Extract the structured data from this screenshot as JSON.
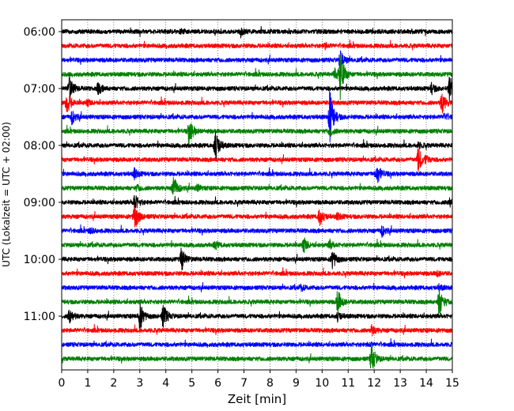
{
  "chart_data": {
    "type": "line",
    "subtype": "helicorder",
    "title": "",
    "xlabel": "Zeit  [min]",
    "ylabel": "UTC (Lokalzeit = UTC + 02:00)",
    "xlim": [
      0,
      15
    ],
    "x_ticks": [
      "0",
      "1",
      "2",
      "3",
      "4",
      "5",
      "6",
      "7",
      "8",
      "9",
      "10",
      "11",
      "12",
      "13",
      "14",
      "15"
    ],
    "y_ticks": [
      "06:00",
      "07:00",
      "08:00",
      "09:00",
      "10:00",
      "11:00"
    ],
    "grid": "vertical dotted lines at each minute",
    "trace_colors": [
      "#000000",
      "#ff0000",
      "#0000ff",
      "#008000"
    ],
    "traces": [
      {
        "start": "06:00",
        "events": [
          {
            "t": 6.9,
            "amp": 0.35
          },
          {
            "t": 4.6,
            "amp": 0.25
          }
        ]
      },
      {
        "start": "06:15",
        "events": [
          {
            "t": 10.1,
            "amp": 0.3
          }
        ]
      },
      {
        "start": "06:30",
        "events": [
          {
            "t": 10.7,
            "amp": 1.2
          }
        ]
      },
      {
        "start": "06:45",
        "events": [
          {
            "t": 10.7,
            "amp": 3.0
          },
          {
            "t": 10.5,
            "amp": 0.6
          }
        ]
      },
      {
        "start": "07:00",
        "events": [
          {
            "t": 0.3,
            "amp": 1.6
          },
          {
            "t": 1.4,
            "amp": 0.7
          },
          {
            "t": 14.9,
            "amp": 1.6
          },
          {
            "t": 14.2,
            "amp": 0.6
          }
        ]
      },
      {
        "start": "07:15",
        "events": [
          {
            "t": 0.2,
            "amp": 1.4
          },
          {
            "t": 14.6,
            "amp": 1.3
          },
          {
            "t": 1.0,
            "amp": 0.3
          }
        ]
      },
      {
        "start": "07:30",
        "events": [
          {
            "t": 0.4,
            "amp": 0.8
          },
          {
            "t": 10.3,
            "amp": 3.4
          },
          {
            "t": 14.7,
            "amp": 0.35
          }
        ]
      },
      {
        "start": "07:45",
        "events": [
          {
            "t": 4.9,
            "amp": 1.6
          },
          {
            "t": 10.3,
            "amp": 0.5
          }
        ]
      },
      {
        "start": "08:00",
        "events": [
          {
            "t": 5.9,
            "amp": 2.2
          },
          {
            "t": 13.7,
            "amp": 0.3
          }
        ]
      },
      {
        "start": "08:15",
        "events": [
          {
            "t": 13.7,
            "amp": 1.6
          },
          {
            "t": 14.0,
            "amp": 0.3
          }
        ]
      },
      {
        "start": "08:30",
        "events": [
          {
            "t": 12.1,
            "amp": 1.5
          },
          {
            "t": 2.8,
            "amp": 0.6
          }
        ]
      },
      {
        "start": "08:45",
        "events": [
          {
            "t": 4.3,
            "amp": 1.5
          },
          {
            "t": 5.2,
            "amp": 0.4
          },
          {
            "t": 2.9,
            "amp": 0.3
          }
        ]
      },
      {
        "start": "09:00",
        "events": [
          {
            "t": 2.8,
            "amp": 1.1
          },
          {
            "t": 14.9,
            "amp": 0.5
          }
        ]
      },
      {
        "start": "09:15",
        "events": [
          {
            "t": 2.8,
            "amp": 1.8
          },
          {
            "t": 9.9,
            "amp": 1.2
          },
          {
            "t": 10.6,
            "amp": 0.4
          }
        ]
      },
      {
        "start": "09:30",
        "events": [
          {
            "t": 12.3,
            "amp": 0.6
          },
          {
            "t": 1.1,
            "amp": 0.3
          }
        ]
      },
      {
        "start": "09:45",
        "events": [
          {
            "t": 9.3,
            "amp": 0.9
          },
          {
            "t": 5.9,
            "amp": 0.4
          },
          {
            "t": 10.3,
            "amp": 0.5
          }
        ]
      },
      {
        "start": "10:00",
        "events": [
          {
            "t": 4.6,
            "amp": 1.5
          },
          {
            "t": 10.4,
            "amp": 1.2
          }
        ]
      },
      {
        "start": "10:15",
        "events": [
          {
            "t": 14.4,
            "amp": 0.3
          }
        ]
      },
      {
        "start": "10:30",
        "events": [
          {
            "t": 9.2,
            "amp": 0.3
          },
          {
            "t": 14.5,
            "amp": 0.3
          }
        ]
      },
      {
        "start": "10:45",
        "events": [
          {
            "t": 10.6,
            "amp": 1.5
          },
          {
            "t": 14.5,
            "amp": 1.8
          }
        ]
      },
      {
        "start": "11:00",
        "events": [
          {
            "t": 0.3,
            "amp": 0.9
          },
          {
            "t": 3.0,
            "amp": 1.8
          },
          {
            "t": 3.9,
            "amp": 1.5
          },
          {
            "t": 10.6,
            "amp": 0.5
          }
        ]
      },
      {
        "start": "11:15",
        "events": [
          {
            "t": 11.9,
            "amp": 0.6
          }
        ]
      },
      {
        "start": "11:30",
        "events": [
          {
            "t": 11.8,
            "amp": 0.2
          }
        ]
      },
      {
        "start": "11:45",
        "events": [
          {
            "t": 11.9,
            "amp": 1.9
          }
        ]
      }
    ]
  }
}
